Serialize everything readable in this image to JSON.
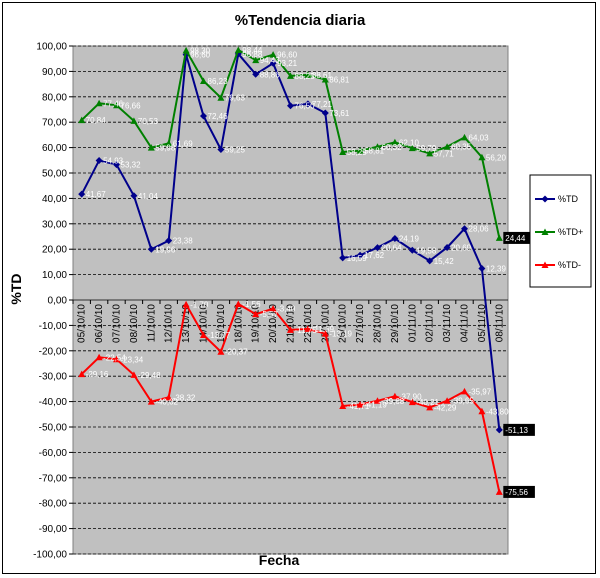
{
  "chart_data": {
    "type": "line",
    "title": "%Tendencia diaria",
    "xlabel": "Fecha",
    "ylabel": "%TD",
    "ylim": [
      -100,
      100
    ],
    "yticks": [
      "100,00",
      "90,00",
      "80,00",
      "70,00",
      "60,00",
      "50,00",
      "40,00",
      "30,00",
      "20,00",
      "10,00",
      "0,00",
      "-10,00",
      "-20,00",
      "-30,00",
      "-40,00",
      "-50,00",
      "-60,00",
      "-70,00",
      "-80,00",
      "-90,00",
      "-100,00"
    ],
    "grid": true,
    "legend_position": "right",
    "categories": [
      "05/10/10",
      "06/10/10",
      "07/10/10",
      "08/10/10",
      "11/10/10",
      "12/10/10",
      "13/10/10",
      "14/10/10",
      "15/10/10",
      "18/10/10",
      "19/10/10",
      "20/10/10",
      "21/10/10",
      "22/10/10",
      "25/10/10",
      "26/10/10",
      "27/10/10",
      "28/10/10",
      "29/10/10",
      "01/11/10",
      "02/11/10",
      "03/11/10",
      "04/11/10",
      "05/11/10",
      "08/11/10"
    ],
    "series": [
      {
        "name": "%TD",
        "color": "#00008B",
        "values": [
          41.67,
          54.93,
          53.32,
          41.04,
          19.96,
          23.38,
          96.6,
          72.46,
          59.25,
          96.88,
          88.86,
          93.21,
          76.5,
          77.21,
          73.61,
          16.59,
          17.62,
          20.64,
          24.19,
          19.58,
          15.42,
          20.69,
          28.06,
          12.39,
          -51.13
        ],
        "labels": [
          "41,67",
          "54,93",
          "53,32",
          "41,04",
          "19,96",
          "23,38",
          "96,60",
          "72,46",
          "59,25",
          "96,88",
          "88,86",
          "93,21",
          "76,50",
          "77,21",
          "73,61",
          "16,59",
          "17,62",
          "20,64",
          "24,19",
          "19,58",
          "15,42",
          "20,69",
          "28,06",
          "12,39",
          "-51,13"
        ]
      },
      {
        "name": "%TD+",
        "color": "#008000",
        "values": [
          70.84,
          77.46,
          76.66,
          70.53,
          59.98,
          61.69,
          98.3,
          86.23,
          79.63,
          98.44,
          94.43,
          96.6,
          88.25,
          88.61,
          86.81,
          58.29,
          58.81,
          60.32,
          62.1,
          59.79,
          57.71,
          60.35,
          64.03,
          56.2,
          24.44
        ],
        "labels": [
          "70,84",
          "77,46",
          "76,66",
          "70,53",
          "59,98",
          "61,69",
          "98,30",
          "86,23",
          "79,63",
          "98,44",
          "94,43",
          "96,60",
          "88,25",
          "88,61",
          "86,81",
          "58,29",
          "58,81",
          "60,32",
          "62,10",
          "59,79",
          "57,71",
          "60,35",
          "64,03",
          "56,20",
          "24,44"
        ]
      },
      {
        "name": "%TD-",
        "color": "#FF0000",
        "values": [
          -29.16,
          -22.54,
          -23.34,
          -29.48,
          -40.02,
          -38.32,
          -1.7,
          -13.77,
          -20.37,
          -1.56,
          -5.57,
          -3.4,
          -11.75,
          -11.39,
          -13.19,
          -41.71,
          -41.19,
          -39.68,
          -37.9,
          -40.21,
          -42.29,
          -39.65,
          -35.97,
          -43.8,
          -75.56
        ],
        "labels": [
          "-29,16",
          "-22,54",
          "-23,34",
          "-29,48",
          "-40,02",
          "-38,32",
          "-1,70",
          "-13,77",
          "-20,37",
          "-1,56",
          "-5,57",
          "-3,40",
          "-11,75",
          "-11,39",
          "-13,19",
          "-41,71",
          "-41,19",
          "-39,68",
          "-37,90",
          "-40,21",
          "-42,29",
          "-39,65",
          "-35,97",
          "-43,80",
          "-75,56"
        ]
      }
    ]
  }
}
